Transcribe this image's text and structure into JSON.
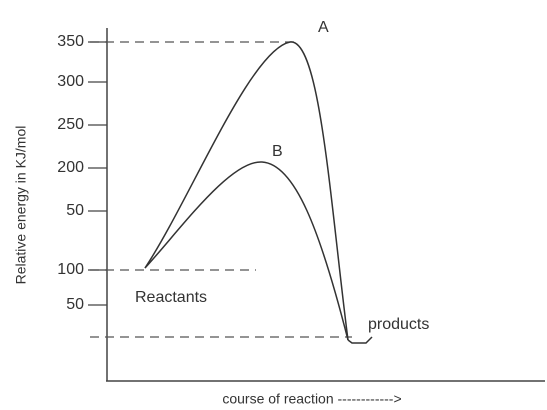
{
  "axis": {
    "y_title": "Relative energy in KJ/mol",
    "x_title": "course of reaction ------------>",
    "ticks": [
      "350",
      "300",
      "250",
      "200",
      "50",
      "100",
      "50"
    ]
  },
  "curves": [
    {
      "label": "A"
    },
    {
      "label": "B"
    }
  ],
  "states": [
    "Reactants",
    "products"
  ]
}
